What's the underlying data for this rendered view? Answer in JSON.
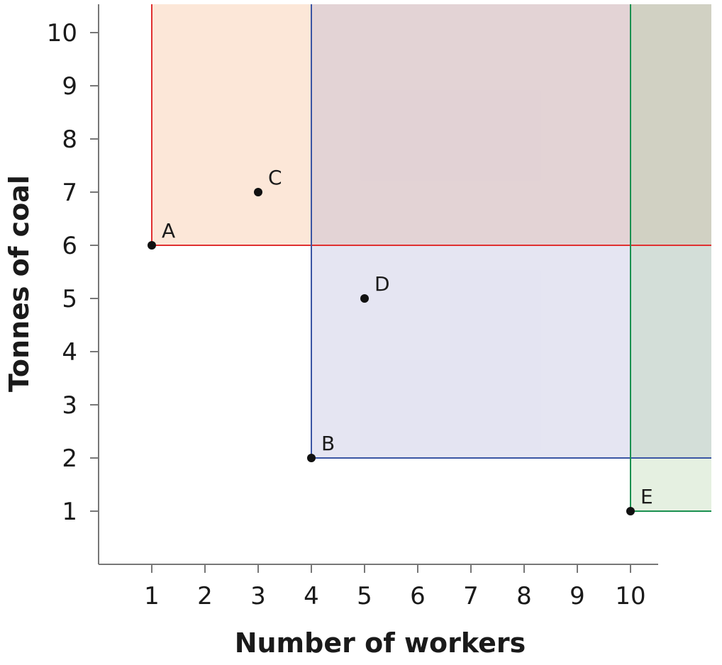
{
  "chart_data": {
    "type": "scatter",
    "xlabel": "Number of workers",
    "ylabel": "Tonnes of coal",
    "xlim": [
      0,
      10.5
    ],
    "ylim": [
      0,
      10.5
    ],
    "x_ticks": [
      1,
      2,
      3,
      4,
      5,
      6,
      7,
      8,
      9,
      10
    ],
    "y_ticks": [
      1,
      2,
      3,
      4,
      5,
      6,
      7,
      8,
      9,
      10
    ],
    "points": [
      {
        "label": "A",
        "x": 1,
        "y": 6
      },
      {
        "label": "B",
        "x": 4,
        "y": 2
      },
      {
        "label": "C",
        "x": 3,
        "y": 7
      },
      {
        "label": "D",
        "x": 5,
        "y": 5
      },
      {
        "label": "E",
        "x": 10,
        "y": 1
      }
    ],
    "regions": [
      {
        "corner": "A",
        "x": 1,
        "y": 6,
        "line_color": "#e03030",
        "fill_color": "#f9c9a8",
        "fill_opacity": 0.45
      },
      {
        "corner": "B",
        "x": 4,
        "y": 2,
        "line_color": "#3a55a4",
        "fill_color": "#9999cc",
        "fill_opacity": 0.26
      },
      {
        "corner": "E",
        "x": 10,
        "y": 1,
        "line_color": "#1a9050",
        "fill_color": "#a8cc9c",
        "fill_opacity": 0.3
      }
    ],
    "grid": false
  }
}
